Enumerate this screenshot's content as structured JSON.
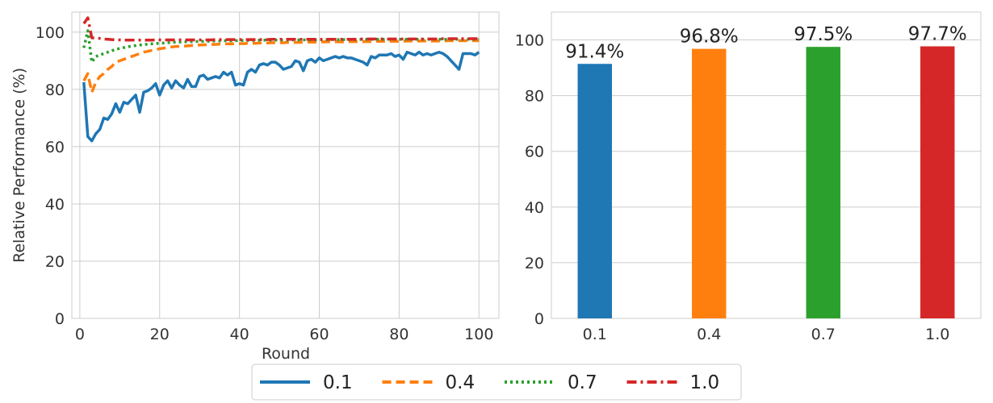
{
  "chart_data": [
    {
      "type": "line",
      "xlabel": "Round",
      "ylabel": "Relative Performance (%)",
      "xlim": [
        -2,
        105
      ],
      "ylim": [
        0,
        107
      ],
      "xticks": [
        0,
        20,
        40,
        60,
        80,
        100
      ],
      "yticks": [
        0,
        20,
        40,
        60,
        80,
        100
      ],
      "grid": true,
      "series": [
        {
          "name": "0.1",
          "color": "#1f77b4",
          "dash": "solid",
          "x": [
            1,
            2,
            3,
            4,
            5,
            6,
            7,
            8,
            9,
            10,
            11,
            12,
            13,
            14,
            15,
            16,
            17,
            18,
            19,
            20,
            21,
            22,
            23,
            24,
            25,
            26,
            27,
            28,
            29,
            30,
            31,
            32,
            33,
            34,
            35,
            36,
            37,
            38,
            39,
            40,
            41,
            42,
            43,
            44,
            45,
            46,
            47,
            48,
            49,
            50,
            51,
            52,
            53,
            54,
            55,
            56,
            57,
            58,
            59,
            60,
            61,
            62,
            63,
            64,
            65,
            66,
            67,
            68,
            69,
            70,
            71,
            72,
            73,
            74,
            75,
            76,
            77,
            78,
            79,
            80,
            81,
            82,
            83,
            84,
            85,
            86,
            87,
            88,
            89,
            90,
            91,
            92,
            93,
            94,
            95,
            96,
            97,
            98,
            99,
            100
          ],
          "values": [
            82.5,
            63.5,
            62.0,
            64.5,
            66.0,
            70.0,
            69.5,
            71.5,
            75.0,
            72.0,
            75.5,
            75.0,
            76.5,
            78.0,
            72.0,
            79.0,
            79.5,
            80.5,
            82.0,
            78.0,
            81.5,
            83.0,
            80.5,
            83.0,
            81.5,
            80.5,
            83.5,
            81.0,
            81.0,
            84.5,
            85.0,
            83.5,
            84.0,
            84.5,
            84.0,
            86.0,
            85.0,
            86.0,
            81.5,
            82.0,
            81.5,
            86.0,
            87.0,
            86.0,
            88.5,
            89.0,
            88.5,
            89.5,
            89.5,
            88.5,
            87.0,
            87.5,
            88.0,
            90.0,
            89.5,
            86.5,
            90.0,
            90.5,
            89.5,
            91.0,
            90.0,
            90.5,
            91.0,
            91.5,
            91.0,
            91.5,
            91.0,
            91.0,
            90.5,
            90.0,
            89.5,
            88.5,
            91.5,
            91.0,
            92.0,
            92.0,
            92.0,
            92.5,
            91.5,
            92.0,
            90.5,
            93.0,
            92.5,
            92.0,
            93.0,
            92.0,
            92.5,
            92.0,
            92.5,
            93.0,
            92.5,
            91.5,
            90.0,
            88.5,
            87.0,
            92.5,
            92.5,
            92.5,
            92.0,
            93.0
          ]
        },
        {
          "name": "0.4",
          "color": "#ff7f0e",
          "dash": "dashed",
          "x": [
            1,
            2,
            3,
            4,
            5,
            6,
            7,
            8,
            9,
            10,
            11,
            12,
            13,
            14,
            15,
            16,
            17,
            18,
            19,
            20,
            21,
            22,
            23,
            24,
            25,
            26,
            27,
            28,
            29,
            30,
            31,
            32,
            33,
            34,
            35,
            36,
            37,
            38,
            39,
            40,
            41,
            42,
            43,
            44,
            45,
            46,
            47,
            48,
            49,
            50,
            51,
            52,
            53,
            54,
            55,
            56,
            57,
            58,
            59,
            60,
            61,
            62,
            63,
            64,
            65,
            66,
            67,
            68,
            69,
            70,
            71,
            72,
            73,
            74,
            75,
            76,
            77,
            78,
            79,
            80,
            81,
            82,
            83,
            84,
            85,
            86,
            87,
            88,
            89,
            90,
            91,
            92,
            93,
            94,
            95,
            96,
            97,
            98,
            99,
            100
          ],
          "values": [
            83.0,
            85.5,
            79.0,
            82.5,
            84.5,
            85.5,
            87.0,
            88.0,
            89.5,
            90.0,
            90.5,
            91.0,
            91.5,
            92.0,
            92.5,
            93.0,
            93.3,
            93.6,
            93.9,
            94.2,
            94.4,
            94.6,
            94.8,
            95.0,
            95.0,
            95.1,
            95.2,
            95.3,
            95.4,
            95.5,
            95.6,
            95.6,
            95.7,
            95.7,
            95.8,
            95.8,
            95.9,
            95.9,
            96.0,
            96.0,
            96.0,
            96.1,
            96.1,
            96.1,
            96.2,
            96.2,
            96.2,
            96.3,
            96.3,
            96.3,
            96.3,
            96.4,
            96.4,
            96.4,
            96.4,
            96.5,
            96.5,
            96.5,
            96.5,
            96.5,
            96.6,
            96.6,
            96.6,
            96.6,
            96.6,
            96.6,
            96.7,
            96.7,
            96.7,
            96.7,
            96.7,
            96.7,
            96.7,
            96.8,
            96.8,
            96.8,
            96.8,
            96.8,
            96.8,
            96.8,
            96.8,
            96.9,
            96.9,
            96.9,
            96.9,
            96.9,
            96.9,
            96.9,
            96.9,
            96.9,
            96.9,
            97.0,
            97.0,
            97.0,
            97.0,
            97.0,
            97.0,
            97.0,
            97.0,
            97.0
          ]
        },
        {
          "name": "0.7",
          "color": "#2ca02c",
          "dash": "dotted",
          "x": [
            1,
            2,
            3,
            4,
            5,
            6,
            7,
            8,
            9,
            10,
            11,
            12,
            13,
            14,
            15,
            16,
            17,
            18,
            19,
            20,
            21,
            22,
            23,
            24,
            25,
            26,
            27,
            28,
            29,
            30,
            31,
            32,
            33,
            34,
            35,
            36,
            37,
            38,
            39,
            40,
            41,
            42,
            43,
            44,
            45,
            46,
            47,
            48,
            49,
            50,
            51,
            52,
            53,
            54,
            55,
            56,
            57,
            58,
            59,
            60,
            61,
            62,
            63,
            64,
            65,
            66,
            67,
            68,
            69,
            70,
            71,
            72,
            73,
            74,
            75,
            76,
            77,
            78,
            79,
            80,
            81,
            82,
            83,
            84,
            85,
            86,
            87,
            88,
            89,
            90,
            91,
            92,
            93,
            94,
            95,
            96,
            97,
            98,
            99,
            100
          ],
          "values": [
            94.5,
            100.5,
            89.5,
            91.5,
            92.0,
            92.5,
            93.0,
            93.5,
            94.0,
            94.3,
            94.6,
            94.9,
            95.1,
            95.3,
            95.5,
            95.6,
            95.8,
            95.9,
            96.0,
            96.1,
            96.2,
            96.3,
            96.4,
            96.5,
            96.5,
            96.6,
            96.6,
            96.7,
            96.7,
            96.8,
            96.8,
            96.8,
            96.9,
            96.9,
            96.9,
            97.0,
            97.0,
            97.0,
            97.0,
            97.1,
            97.1,
            97.1,
            97.1,
            97.1,
            97.2,
            97.2,
            97.2,
            97.2,
            97.2,
            97.2,
            97.3,
            97.3,
            97.3,
            97.3,
            97.3,
            97.3,
            97.3,
            97.3,
            97.3,
            97.4,
            97.4,
            97.4,
            97.4,
            97.4,
            97.4,
            97.4,
            97.4,
            97.4,
            97.4,
            97.4,
            97.5,
            97.5,
            97.5,
            97.5,
            97.5,
            97.5,
            97.5,
            97.5,
            97.5,
            97.5,
            97.5,
            97.5,
            97.5,
            97.5,
            97.5,
            97.5,
            97.5,
            97.5,
            97.5,
            97.5,
            97.5,
            97.5,
            97.5,
            97.5,
            97.5,
            97.5,
            97.5,
            97.5,
            97.5,
            97.5
          ]
        },
        {
          "name": "1.0",
          "color": "#d62728",
          "dash": "dashdot",
          "x": [
            1,
            2,
            3,
            4,
            5,
            6,
            7,
            8,
            9,
            10,
            11,
            12,
            13,
            14,
            15,
            16,
            17,
            18,
            19,
            20,
            21,
            22,
            23,
            24,
            25,
            26,
            27,
            28,
            29,
            30,
            31,
            32,
            33,
            34,
            35,
            36,
            37,
            38,
            39,
            40,
            41,
            42,
            43,
            44,
            45,
            46,
            47,
            48,
            49,
            50,
            51,
            52,
            53,
            54,
            55,
            56,
            57,
            58,
            59,
            60,
            61,
            62,
            63,
            64,
            65,
            66,
            67,
            68,
            69,
            70,
            71,
            72,
            73,
            74,
            75,
            76,
            77,
            78,
            79,
            80,
            81,
            82,
            83,
            84,
            85,
            86,
            87,
            88,
            89,
            90,
            91,
            92,
            93,
            94,
            95,
            96,
            97,
            98,
            99,
            100
          ],
          "values": [
            103.0,
            105.0,
            98.0,
            98.0,
            97.8,
            97.6,
            97.5,
            97.4,
            97.3,
            97.3,
            97.2,
            97.2,
            97.2,
            97.2,
            97.2,
            97.2,
            97.2,
            97.2,
            97.3,
            97.3,
            97.3,
            97.3,
            97.3,
            97.3,
            97.3,
            97.3,
            97.3,
            97.3,
            97.3,
            97.3,
            97.3,
            97.3,
            97.3,
            97.4,
            97.4,
            97.4,
            97.4,
            97.4,
            97.4,
            97.4,
            97.4,
            97.4,
            97.4,
            97.4,
            97.4,
            97.4,
            97.4,
            97.5,
            97.5,
            97.5,
            97.5,
            97.5,
            97.5,
            97.5,
            97.5,
            97.5,
            97.5,
            97.5,
            97.5,
            97.5,
            97.5,
            97.5,
            97.5,
            97.5,
            97.5,
            97.5,
            97.5,
            97.5,
            97.5,
            97.6,
            97.6,
            97.6,
            97.6,
            97.6,
            97.6,
            97.6,
            97.6,
            97.6,
            97.6,
            97.6,
            97.6,
            97.6,
            97.6,
            97.6,
            97.6,
            97.6,
            97.6,
            97.6,
            97.6,
            97.6,
            97.7,
            97.7,
            97.7,
            97.7,
            97.7,
            97.7,
            97.7,
            97.7,
            97.7,
            97.7
          ]
        }
      ]
    },
    {
      "type": "bar",
      "categories": [
        "0.1",
        "0.4",
        "0.7",
        "1.0"
      ],
      "values": [
        91.4,
        96.8,
        97.5,
        97.7
      ],
      "labels": [
        "91.4%",
        "96.8%",
        "97.5%",
        "97.7%"
      ],
      "colors": [
        "#1f77b4",
        "#ff7f0e",
        "#2ca02c",
        "#d62728"
      ],
      "ylim": [
        0,
        110
      ],
      "yticks": [
        0,
        20,
        40,
        60,
        80,
        100
      ],
      "grid": true
    }
  ],
  "legend": {
    "placement": "bottom-center",
    "entries": [
      {
        "label": "0.1",
        "color": "#1f77b4",
        "dash": "solid"
      },
      {
        "label": "0.4",
        "color": "#ff7f0e",
        "dash": "dashed"
      },
      {
        "label": "0.7",
        "color": "#2ca02c",
        "dash": "dotted"
      },
      {
        "label": "1.0",
        "color": "#d62728",
        "dash": "dashdot"
      }
    ]
  }
}
